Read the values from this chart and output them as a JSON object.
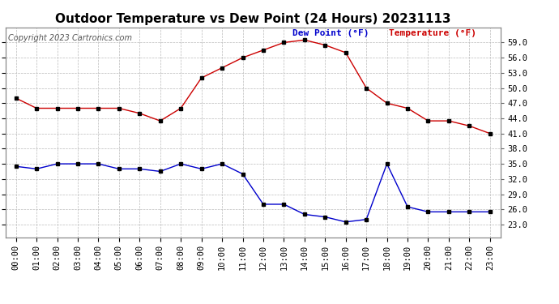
{
  "title": "Outdoor Temperature vs Dew Point (24 Hours) 20231113",
  "copyright": "Copyright 2023 Cartronics.com",
  "legend_dew": "Dew Point (°F)",
  "legend_temp": "Temperature (°F)",
  "hours": [
    "00:00",
    "01:00",
    "02:00",
    "03:00",
    "04:00",
    "05:00",
    "06:00",
    "07:00",
    "08:00",
    "09:00",
    "10:00",
    "11:00",
    "12:00",
    "13:00",
    "14:00",
    "15:00",
    "16:00",
    "17:00",
    "18:00",
    "19:00",
    "20:00",
    "21:00",
    "22:00",
    "23:00"
  ],
  "temperature": [
    48.0,
    46.0,
    46.0,
    46.0,
    46.0,
    46.0,
    45.0,
    43.5,
    46.0,
    52.0,
    54.0,
    56.0,
    57.5,
    59.0,
    59.5,
    58.5,
    57.0,
    50.0,
    47.0,
    46.0,
    43.5,
    43.5,
    42.5,
    41.0
  ],
  "dew_point": [
    34.5,
    34.0,
    35.0,
    35.0,
    35.0,
    34.0,
    34.0,
    33.5,
    35.0,
    34.0,
    35.0,
    33.0,
    27.0,
    27.0,
    25.0,
    24.5,
    23.5,
    24.0,
    35.0,
    26.5,
    25.5,
    25.5,
    25.5,
    25.5
  ],
  "temp_color": "#cc0000",
  "dew_color": "#0000cc",
  "marker_color": "#000000",
  "bg_color": "#ffffff",
  "grid_color": "#bbbbbb",
  "ylim_min": 20.5,
  "ylim_max": 62.0,
  "ytick_min": 23.0,
  "ytick_max": 59.0,
  "ytick_step": 3.0,
  "title_fontsize": 11,
  "copyright_fontsize": 7,
  "legend_fontsize": 8,
  "tick_fontsize": 7.5
}
